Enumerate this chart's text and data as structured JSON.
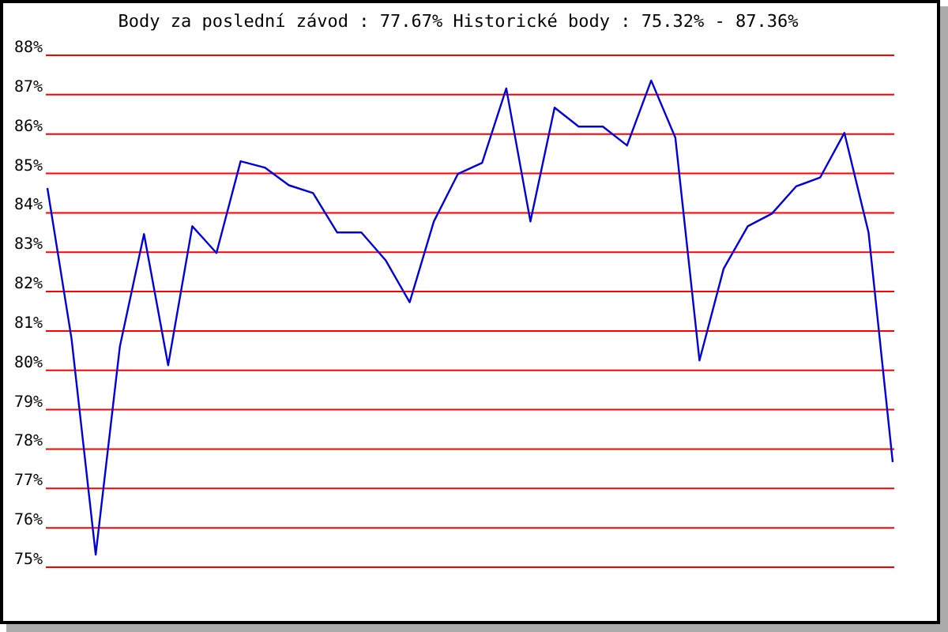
{
  "chart_data": {
    "type": "line",
    "title": "Body za poslední závod : 77.67%  Historické body : 75.32% - 87.36%",
    "categories": [
      null,
      null,
      null,
      null,
      null,
      null,
      null,
      null,
      null,
      null,
      null,
      null,
      null,
      null,
      null,
      null,
      null,
      null,
      null,
      null,
      null,
      null,
      null,
      null,
      null,
      null,
      null,
      null,
      null,
      null,
      null,
      null,
      null,
      null,
      null,
      null
    ],
    "series": [
      {
        "color": "#0000dd",
        "values": [
          84.63,
          80.8,
          75.32,
          80.6,
          83.46,
          80.13,
          83.66,
          82.98,
          85.31,
          85.15,
          84.7,
          84.5,
          83.5,
          83.5,
          82.8,
          81.73,
          83.78,
          84.99,
          85.27,
          87.16,
          83.78,
          86.67,
          86.19,
          86.19,
          85.71,
          87.36,
          85.91,
          80.25,
          82.58,
          83.66,
          83.98,
          84.67,
          84.9,
          86.03,
          83.5,
          77.67
        ]
      }
    ],
    "ylim": [
      75,
      88
    ],
    "yticks": [
      {
        "value": 75,
        "label": "75%"
      },
      {
        "value": 76,
        "label": "76%"
      },
      {
        "value": 77,
        "label": "77%"
      },
      {
        "value": 78,
        "label": "78%"
      },
      {
        "value": 79,
        "label": "79%"
      },
      {
        "value": 80,
        "label": "80%"
      },
      {
        "value": 81,
        "label": "81%"
      },
      {
        "value": 82,
        "label": "82%"
      },
      {
        "value": 83,
        "label": "83%"
      },
      {
        "value": 84,
        "label": "84%"
      },
      {
        "value": 85,
        "label": "85%"
      },
      {
        "value": 86,
        "label": "86%"
      },
      {
        "value": 87,
        "label": "87%"
      },
      {
        "value": 88,
        "label": "88%"
      }
    ],
    "grid": true,
    "tick_labels": "y",
    "marker": "none",
    "line_style": "solid"
  }
}
